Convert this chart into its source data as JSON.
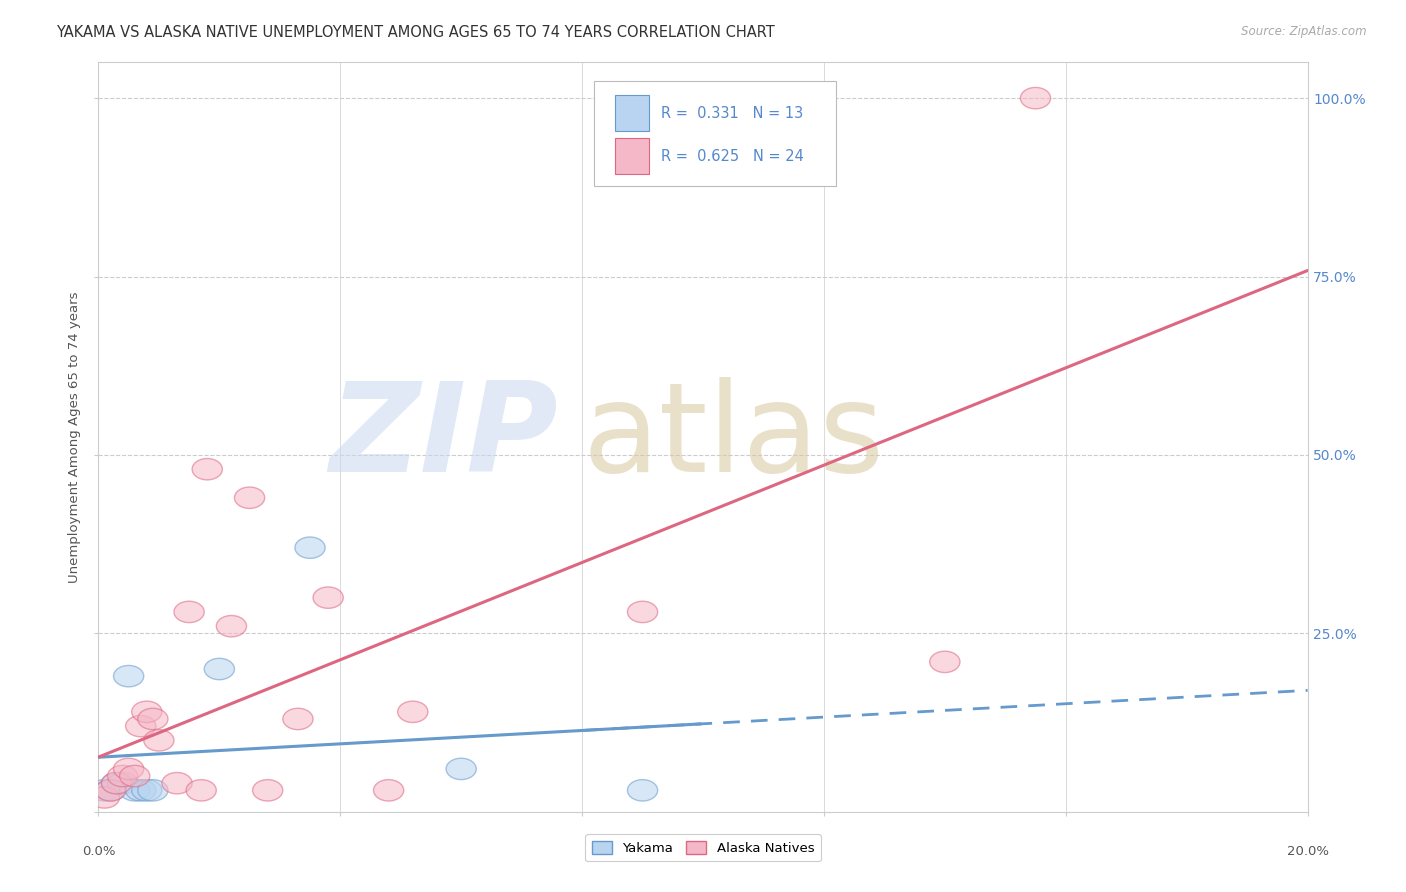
{
  "title": "YAKAMA VS ALASKA NATIVE UNEMPLOYMENT AMONG AGES 65 TO 74 YEARS CORRELATION CHART",
  "source": "Source: ZipAtlas.com",
  "ylabel": "Unemployment Among Ages 65 to 74 years",
  "y_ticks": [
    0.0,
    0.25,
    0.5,
    0.75,
    1.0
  ],
  "y_tick_labels_right": [
    "",
    "25.0%",
    "50.0%",
    "75.0%",
    "100.0%"
  ],
  "x_range": [
    0.0,
    0.2
  ],
  "y_range": [
    0.0,
    1.05
  ],
  "x_ticks": [
    0.0,
    0.04,
    0.08,
    0.12,
    0.16,
    0.2
  ],
  "legend1_R": "0.331",
  "legend1_N": "13",
  "legend2_R": "0.625",
  "legend2_N": "24",
  "series1_name": "Yakama",
  "series2_name": "Alaska Natives",
  "series1_face_color": "#b8d4f0",
  "series1_edge_color": "#6699cc",
  "series2_face_color": "#f5b8c8",
  "series2_edge_color": "#dd6680",
  "line1_color": "#6699cc",
  "line2_color": "#dd6680",
  "right_tick_color": "#5588cc",
  "grid_color": "#cccccc",
  "title_color": "#333333",
  "yakama_x": [
    0.001,
    0.002,
    0.003,
    0.004,
    0.005,
    0.006,
    0.007,
    0.008,
    0.009,
    0.02,
    0.035,
    0.06,
    0.09
  ],
  "yakama_y": [
    0.03,
    0.03,
    0.04,
    0.04,
    0.19,
    0.03,
    0.03,
    0.03,
    0.03,
    0.2,
    0.37,
    0.06,
    0.03
  ],
  "alaska_x": [
    0.001,
    0.002,
    0.003,
    0.004,
    0.005,
    0.006,
    0.007,
    0.008,
    0.009,
    0.01,
    0.013,
    0.015,
    0.017,
    0.018,
    0.022,
    0.025,
    0.028,
    0.033,
    0.038,
    0.048,
    0.052,
    0.09,
    0.14,
    0.155
  ],
  "alaska_y": [
    0.02,
    0.03,
    0.04,
    0.05,
    0.06,
    0.05,
    0.12,
    0.14,
    0.13,
    0.1,
    0.04,
    0.28,
    0.03,
    0.48,
    0.26,
    0.44,
    0.03,
    0.13,
    0.3,
    0.03,
    0.14,
    0.28,
    0.21,
    1.0
  ]
}
